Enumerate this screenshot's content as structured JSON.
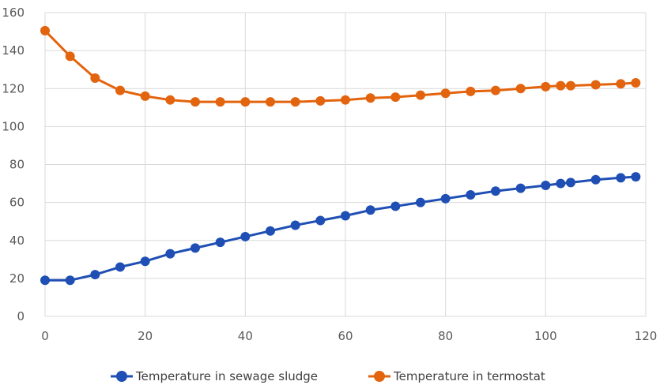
{
  "chart_data": {
    "type": "line",
    "title": "",
    "xlabel": "",
    "ylabel": "",
    "xlim": [
      0,
      120
    ],
    "ylim": [
      0,
      160
    ],
    "xticks": [
      0,
      20,
      40,
      60,
      80,
      100,
      120
    ],
    "yticks": [
      0,
      20,
      40,
      60,
      80,
      100,
      120,
      140,
      160
    ],
    "grid": true,
    "legend_position": "bottom",
    "x": [
      0,
      5,
      10,
      15,
      20,
      25,
      30,
      35,
      40,
      45,
      50,
      55,
      60,
      65,
      70,
      75,
      80,
      85,
      90,
      95,
      100,
      103,
      105,
      110,
      115,
      118
    ],
    "series": [
      {
        "name": "Temperature in sewage sludge",
        "color": "#1f4fb4",
        "values": [
          19,
          19,
          22,
          26,
          29,
          33,
          36,
          39,
          42,
          45,
          48,
          50.5,
          53,
          56,
          58,
          60,
          62,
          64,
          66,
          67.5,
          69,
          70,
          70.5,
          72,
          73,
          73.5
        ]
      },
      {
        "name": "Temperature in termostat",
        "color": "#e3640e",
        "values": [
          150.5,
          137,
          125.5,
          119,
          116,
          114,
          113,
          113,
          113,
          113,
          113,
          113.5,
          114,
          115,
          115.5,
          116.5,
          117.5,
          118.5,
          119,
          120,
          121,
          121.5,
          121.5,
          122,
          122.5,
          123
        ]
      }
    ]
  }
}
